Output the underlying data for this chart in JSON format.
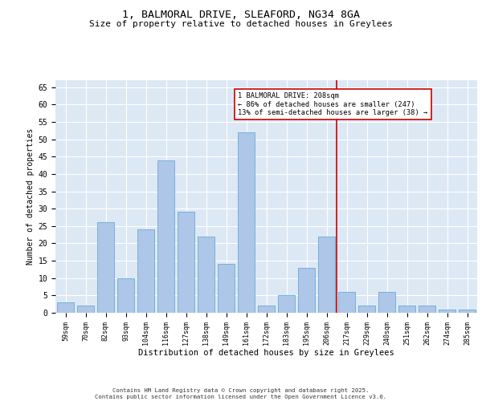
{
  "title1": "1, BALMORAL DRIVE, SLEAFORD, NG34 8GA",
  "title2": "Size of property relative to detached houses in Greylees",
  "xlabel": "Distribution of detached houses by size in Greylees",
  "ylabel": "Number of detached properties",
  "categories": [
    "59sqm",
    "70sqm",
    "82sqm",
    "93sqm",
    "104sqm",
    "116sqm",
    "127sqm",
    "138sqm",
    "149sqm",
    "161sqm",
    "172sqm",
    "183sqm",
    "195sqm",
    "206sqm",
    "217sqm",
    "229sqm",
    "240sqm",
    "251sqm",
    "262sqm",
    "274sqm",
    "285sqm"
  ],
  "values": [
    3,
    2,
    26,
    10,
    24,
    44,
    29,
    22,
    14,
    52,
    2,
    5,
    13,
    22,
    6,
    2,
    6,
    2,
    2,
    1,
    1
  ],
  "bar_color": "#aec6e8",
  "bar_edge_color": "#6aaad4",
  "background_color": "#dde8f5",
  "grid_color": "#ffffff",
  "vline_color": "#cc0000",
  "annotation_text": "1 BALMORAL DRIVE: 208sqm\n← 86% of detached houses are smaller (247)\n13% of semi-detached houses are larger (38) →",
  "annotation_box_color": "#ffffff",
  "annotation_box_edge_color": "#cc0000",
  "ylim": [
    0,
    67
  ],
  "yticks": [
    0,
    5,
    10,
    15,
    20,
    25,
    30,
    35,
    40,
    45,
    50,
    55,
    60,
    65
  ],
  "footer1": "Contains HM Land Registry data © Crown copyright and database right 2025.",
  "footer2": "Contains public sector information licensed under the Open Government Licence v3.0."
}
